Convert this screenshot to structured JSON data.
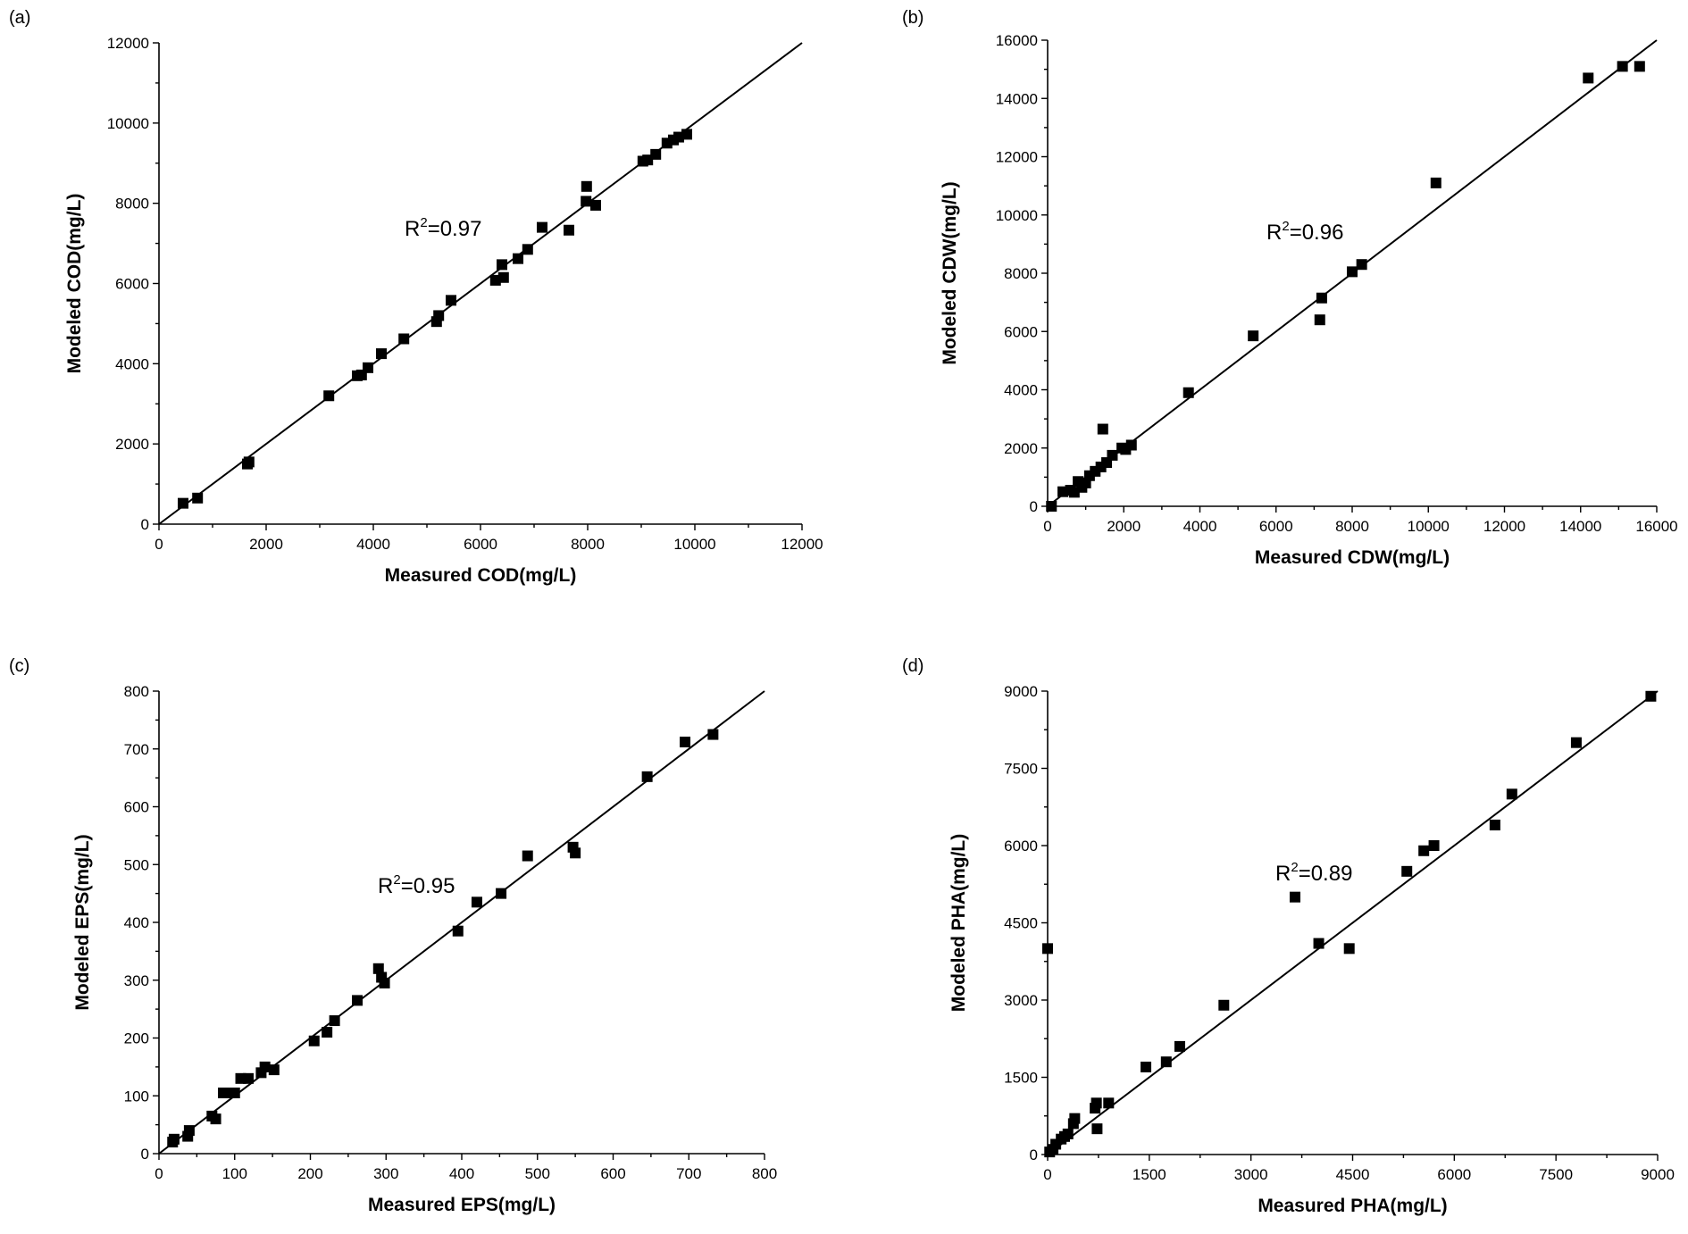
{
  "chart_data": [
    {
      "type": "scatter",
      "panel_label": "(a)",
      "xlabel": "Measured COD(mg/L)",
      "ylabel": "Modeled COD(mg/L)",
      "xlim": [
        0,
        12000
      ],
      "ylim": [
        0,
        12000
      ],
      "xticks": [
        0,
        2000,
        4000,
        6000,
        8000,
        10000,
        12000
      ],
      "yticks": [
        0,
        2000,
        4000,
        6000,
        8000,
        10000,
        12000
      ],
      "annotation": {
        "prefix": "R",
        "sup": "2",
        "suffix": "=0.97"
      },
      "fit_line": [
        [
          0,
          0
        ],
        [
          12000,
          12000
        ]
      ],
      "points": [
        [
          450,
          520
        ],
        [
          720,
          650
        ],
        [
          1650,
          1500
        ],
        [
          1680,
          1550
        ],
        [
          3170,
          3200
        ],
        [
          3700,
          3700
        ],
        [
          3780,
          3720
        ],
        [
          3900,
          3900
        ],
        [
          4150,
          4250
        ],
        [
          4570,
          4620
        ],
        [
          5180,
          5050
        ],
        [
          5220,
          5200
        ],
        [
          5450,
          5580
        ],
        [
          6280,
          6080
        ],
        [
          6430,
          6150
        ],
        [
          6400,
          6470
        ],
        [
          6700,
          6620
        ],
        [
          6880,
          6850
        ],
        [
          7150,
          7400
        ],
        [
          7650,
          7330
        ],
        [
          7980,
          8420
        ],
        [
          7970,
          8050
        ],
        [
          8150,
          7950
        ],
        [
          9030,
          9050
        ],
        [
          9120,
          9080
        ],
        [
          9270,
          9220
        ],
        [
          9480,
          9500
        ],
        [
          9600,
          9580
        ],
        [
          9700,
          9650
        ],
        [
          9850,
          9720
        ]
      ]
    },
    {
      "type": "scatter",
      "panel_label": "(b)",
      "xlabel": "Measured CDW(mg/L)",
      "ylabel": "Modeled CDW(mg/L)",
      "xlim": [
        0,
        16000
      ],
      "ylim": [
        0,
        16000
      ],
      "xticks": [
        0,
        2000,
        4000,
        6000,
        8000,
        10000,
        12000,
        14000,
        16000
      ],
      "yticks": [
        0,
        2000,
        4000,
        6000,
        8000,
        10000,
        12000,
        14000,
        16000
      ],
      "annotation": {
        "prefix": "R",
        "sup": "2",
        "suffix": "=0.96"
      },
      "fit_line": [
        [
          0,
          0
        ],
        [
          16000,
          16000
        ]
      ],
      "points": [
        [
          100,
          0
        ],
        [
          400,
          500
        ],
        [
          600,
          550
        ],
        [
          700,
          480
        ],
        [
          800,
          850
        ],
        [
          900,
          650
        ],
        [
          1000,
          800
        ],
        [
          1100,
          1050
        ],
        [
          1250,
          1200
        ],
        [
          1400,
          1350
        ],
        [
          1450,
          2650
        ],
        [
          1550,
          1500
        ],
        [
          1700,
          1750
        ],
        [
          1950,
          2000
        ],
        [
          2050,
          1950
        ],
        [
          2200,
          2100
        ],
        [
          3700,
          3900
        ],
        [
          5400,
          5850
        ],
        [
          7150,
          6400
        ],
        [
          7200,
          7150
        ],
        [
          8000,
          8050
        ],
        [
          8250,
          8300
        ],
        [
          10200,
          11100
        ],
        [
          14200,
          14700
        ],
        [
          15100,
          15100
        ],
        [
          15550,
          15100
        ]
      ]
    },
    {
      "type": "scatter",
      "panel_label": "(c)",
      "xlabel": "Measured EPS(mg/L)",
      "ylabel": "Modeled EPS(mg/L)",
      "xlim": [
        0,
        800
      ],
      "ylim": [
        0,
        800
      ],
      "xticks": [
        0,
        100,
        200,
        300,
        400,
        500,
        600,
        700,
        800
      ],
      "yticks": [
        0,
        100,
        200,
        300,
        400,
        500,
        600,
        700,
        800
      ],
      "annotation": {
        "prefix": "R",
        "sup": "2",
        "suffix": "=0.95"
      },
      "fit_line": [
        [
          0,
          0
        ],
        [
          800,
          800
        ]
      ],
      "points": [
        [
          18,
          20
        ],
        [
          20,
          25
        ],
        [
          38,
          30
        ],
        [
          40,
          40
        ],
        [
          70,
          65
        ],
        [
          75,
          60
        ],
        [
          85,
          105
        ],
        [
          95,
          105
        ],
        [
          100,
          105
        ],
        [
          108,
          130
        ],
        [
          118,
          130
        ],
        [
          135,
          140
        ],
        [
          140,
          150
        ],
        [
          152,
          145
        ],
        [
          205,
          195
        ],
        [
          222,
          210
        ],
        [
          232,
          230
        ],
        [
          262,
          265
        ],
        [
          290,
          320
        ],
        [
          294,
          305
        ],
        [
          298,
          295
        ],
        [
          395,
          385
        ],
        [
          420,
          435
        ],
        [
          452,
          450
        ],
        [
          487,
          515
        ],
        [
          547,
          530
        ],
        [
          550,
          520
        ],
        [
          645,
          652
        ],
        [
          695,
          712
        ],
        [
          732,
          725
        ]
      ]
    },
    {
      "type": "scatter",
      "panel_label": "(d)",
      "xlabel": "Measured PHA(mg/L)",
      "ylabel": "Modeled PHA(mg/L)",
      "xlim": [
        0,
        9000
      ],
      "ylim": [
        0,
        9000
      ],
      "xticks": [
        0,
        1500,
        3000,
        4500,
        6000,
        7500,
        9000
      ],
      "yticks": [
        0,
        1500,
        3000,
        4500,
        6000,
        7500,
        9000
      ],
      "annotation": {
        "prefix": "R",
        "sup": "2",
        "suffix": "=0.89"
      },
      "fit_line": [
        [
          0,
          0
        ],
        [
          9000,
          9000
        ]
      ],
      "points": [
        [
          0,
          4000
        ],
        [
          30,
          50
        ],
        [
          80,
          100
        ],
        [
          120,
          200
        ],
        [
          200,
          300
        ],
        [
          250,
          350
        ],
        [
          300,
          400
        ],
        [
          380,
          600
        ],
        [
          400,
          700
        ],
        [
          700,
          900
        ],
        [
          720,
          1000
        ],
        [
          730,
          500
        ],
        [
          900,
          1000
        ],
        [
          1450,
          1700
        ],
        [
          1750,
          1800
        ],
        [
          1950,
          2100
        ],
        [
          2600,
          2900
        ],
        [
          3650,
          5000
        ],
        [
          4000,
          4100
        ],
        [
          4450,
          4000
        ],
        [
          5300,
          5500
        ],
        [
          5550,
          5900
        ],
        [
          5700,
          6000
        ],
        [
          6600,
          6400
        ],
        [
          6850,
          7000
        ],
        [
          7800,
          8000
        ],
        [
          8900,
          8900
        ]
      ]
    }
  ]
}
